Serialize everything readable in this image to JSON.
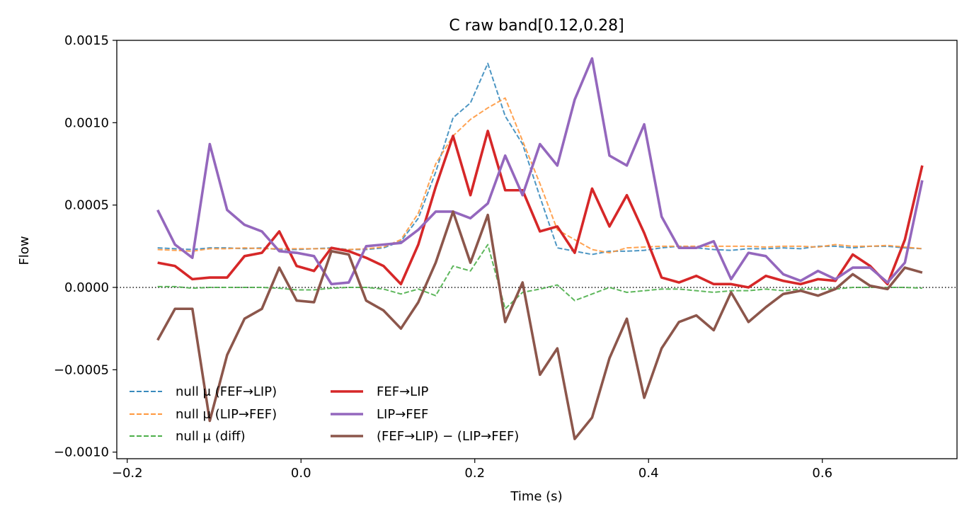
{
  "chart_data": {
    "type": "line",
    "title": "C raw   band[0.12,0.28]",
    "xlabel": "Time (s)",
    "ylabel": "Flow",
    "xlim": [
      -0.212,
      0.755
    ],
    "ylim": [
      -0.00104,
      0.0015
    ],
    "x_ticks": [
      -0.2,
      0.0,
      0.2,
      0.4,
      0.6
    ],
    "x_tick_labels": [
      "−0.2",
      "0.0",
      "0.2",
      "0.4",
      "0.6"
    ],
    "y_ticks": [
      -0.001,
      -0.0005,
      0.0,
      0.0005,
      0.001,
      0.0015
    ],
    "y_tick_labels": [
      "−0.0010",
      "−0.0005",
      "0.0000",
      "0.0005",
      "0.0010",
      "0.0015"
    ],
    "grid": false,
    "zero_line": true,
    "legend_position": "lower-left",
    "x": [
      -0.165,
      -0.145,
      -0.125,
      -0.105,
      -0.085,
      -0.065,
      -0.045,
      -0.025,
      -0.005,
      0.015,
      0.035,
      0.055,
      0.075,
      0.095,
      0.115,
      0.135,
      0.155,
      0.175,
      0.195,
      0.215,
      0.235,
      0.255,
      0.275,
      0.295,
      0.315,
      0.335,
      0.355,
      0.375,
      0.395,
      0.415,
      0.435,
      0.455,
      0.475,
      0.495,
      0.515,
      0.535,
      0.555,
      0.575,
      0.595,
      0.615,
      0.635,
      0.655,
      0.675,
      0.695,
      0.715
    ],
    "series": [
      {
        "name": "null μ (FEF→LIP)",
        "color": "#3a8bbd",
        "style": "dashed",
        "values": [
          0.00024,
          0.000235,
          0.00023,
          0.00024,
          0.00024,
          0.000235,
          0.00024,
          0.00023,
          0.00023,
          0.000235,
          0.00024,
          0.00023,
          0.00023,
          0.00024,
          0.00028,
          0.00042,
          0.0007,
          0.00103,
          0.00112,
          0.00136,
          0.00104,
          0.00087,
          0.00055,
          0.00024,
          0.00022,
          0.0002,
          0.00022,
          0.00022,
          0.000225,
          0.00024,
          0.00025,
          0.00024,
          0.00023,
          0.000225,
          0.000235,
          0.000235,
          0.00024,
          0.000235,
          0.00025,
          0.00025,
          0.00024,
          0.00025,
          0.00025,
          0.00024,
          0.000235
        ]
      },
      {
        "name": "null μ (LIP→FEF)",
        "color": "#ff983e",
        "style": "dashed",
        "values": [
          0.00023,
          0.000225,
          0.00022,
          0.000235,
          0.000235,
          0.00024,
          0.000235,
          0.000235,
          0.000235,
          0.000235,
          0.000235,
          0.00023,
          0.000235,
          0.000245,
          0.00029,
          0.00045,
          0.00075,
          0.00092,
          0.00102,
          0.00109,
          0.00115,
          0.00089,
          0.00063,
          0.00035,
          0.00029,
          0.00023,
          0.00021,
          0.00024,
          0.000245,
          0.00025,
          0.00025,
          0.00025,
          0.00025,
          0.00025,
          0.00025,
          0.000245,
          0.00025,
          0.00025,
          0.000245,
          0.00026,
          0.00025,
          0.00025,
          0.000255,
          0.000245,
          0.000235
        ]
      },
      {
        "name": "null μ (diff)",
        "color": "#4daf4a",
        "style": "dashed",
        "values": [
          5e-06,
          5e-06,
          -5e-06,
          0.0,
          0.0,
          0.0,
          0.0,
          -5e-06,
          -1.5e-05,
          -1.5e-05,
          -5e-06,
          0.0,
          0.0,
          -1e-05,
          -4e-05,
          -1e-05,
          -5e-05,
          0.00013,
          0.0001,
          0.00026,
          -0.00013,
          -3e-05,
          -1e-05,
          1.5e-05,
          -8e-05,
          -4e-05,
          0.0,
          -3e-05,
          -2e-05,
          -1e-05,
          -1e-05,
          -2e-05,
          -3e-05,
          -2e-05,
          -2e-05,
          -1e-05,
          -2e-05,
          -1e-05,
          -1e-05,
          -1e-05,
          0.0,
          0.0,
          0.0,
          0.0,
          -5e-06
        ]
      },
      {
        "name": "FEF→LIP",
        "color": "#d62728",
        "style": "solid",
        "values": [
          0.00015,
          0.00013,
          5e-05,
          6e-05,
          6e-05,
          0.00019,
          0.00021,
          0.00034,
          0.00013,
          0.0001,
          0.00024,
          0.00022,
          0.00018,
          0.00013,
          2e-05,
          0.00026,
          0.00061,
          0.00092,
          0.00056,
          0.00095,
          0.00059,
          0.00059,
          0.00034,
          0.00037,
          0.00021,
          0.0006,
          0.00037,
          0.00056,
          0.00033,
          6e-05,
          3e-05,
          7e-05,
          2e-05,
          2e-05,
          0.0,
          7e-05,
          4e-05,
          2e-05,
          5e-05,
          4e-05,
          0.0002,
          0.00013,
          2e-05,
          0.00029,
          0.00074
        ]
      },
      {
        "name": "LIP→FEF",
        "color": "#9467bd",
        "style": "solid",
        "values": [
          0.00047,
          0.00026,
          0.00018,
          0.00087,
          0.00047,
          0.00038,
          0.00034,
          0.00022,
          0.00021,
          0.00019,
          2e-05,
          3e-05,
          0.00025,
          0.00026,
          0.00027,
          0.00035,
          0.00046,
          0.00046,
          0.00042,
          0.00051,
          0.0008,
          0.00056,
          0.00087,
          0.00074,
          0.00114,
          0.00139,
          0.0008,
          0.00074,
          0.00099,
          0.00043,
          0.00024,
          0.00024,
          0.00028,
          5e-05,
          0.00021,
          0.00019,
          8e-05,
          4e-05,
          0.0001,
          5e-05,
          0.00012,
          0.00012,
          3e-05,
          0.00015,
          0.00065
        ]
      },
      {
        "name": "(FEF→LIP) − (LIP→FEF)",
        "color": "#8c564b",
        "style": "solid",
        "values": [
          -0.00032,
          -0.00013,
          -0.00013,
          -0.00081,
          -0.00041,
          -0.00019,
          -0.00013,
          0.00012,
          -8e-05,
          -9e-05,
          0.00022,
          0.0002,
          -8e-05,
          -0.00014,
          -0.00025,
          -9e-05,
          0.00015,
          0.00046,
          0.00015,
          0.00044,
          -0.00021,
          3e-05,
          -0.00053,
          -0.00037,
          -0.00092,
          -0.00079,
          -0.00043,
          -0.00019,
          -0.00067,
          -0.00037,
          -0.00021,
          -0.00017,
          -0.00026,
          -3e-05,
          -0.00021,
          -0.00012,
          -4e-05,
          -2e-05,
          -5e-05,
          -1e-05,
          8e-05,
          1e-05,
          -1e-05,
          0.00012,
          9e-05
        ]
      }
    ]
  }
}
